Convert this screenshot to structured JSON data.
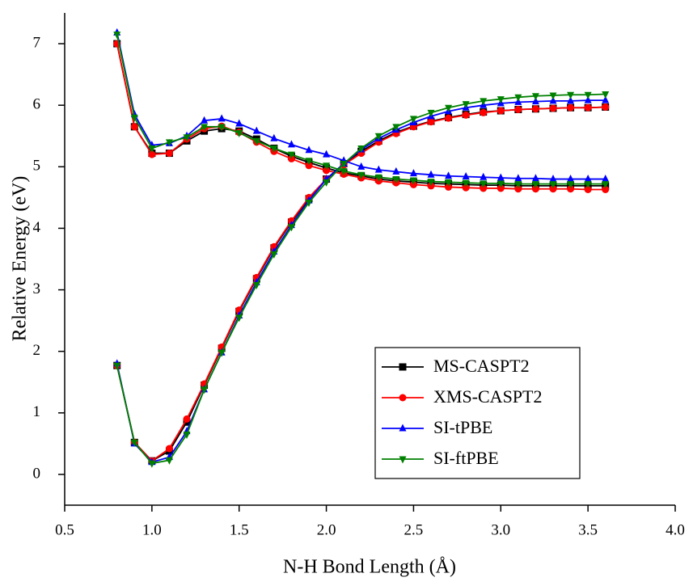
{
  "chart_data": {
    "type": "line",
    "xlabel": "N-H Bond Length (Å)",
    "ylabel": "Relative Energy (eV)",
    "xlim": [
      0.5,
      4.0
    ],
    "ylim": [
      -0.5,
      7.5
    ],
    "xticks": [
      0.5,
      {
        "value": 1,
        "label": "1.0"
      },
      1.5,
      {
        "value": 2,
        "label": "2.0"
      },
      2.5,
      {
        "value": 3,
        "label": "3.0"
      },
      3.5,
      {
        "value": 4,
        "label": "4.0"
      }
    ],
    "yticks": [
      0,
      1,
      2,
      3,
      4,
      5,
      6,
      7
    ],
    "legend": "lower-right",
    "x": [
      0.8,
      0.9,
      1.0,
      1.1,
      1.2,
      1.3,
      1.4,
      1.5,
      1.6,
      1.7,
      1.8,
      1.9,
      2.0,
      2.1,
      2.2,
      2.3,
      2.4,
      2.5,
      2.6,
      2.7,
      2.8,
      2.9,
      3.0,
      3.1,
      3.2,
      3.3,
      3.4,
      3.5,
      3.6
    ],
    "series": [
      {
        "name": "MS-CASPT2",
        "color": "#000000",
        "marker": "square",
        "values": [
          1.77,
          0.52,
          0.22,
          0.38,
          0.85,
          1.45,
          2.05,
          2.65,
          3.18,
          3.68,
          4.1,
          4.48,
          4.8,
          5.05,
          5.25,
          5.42,
          5.56,
          5.66,
          5.74,
          5.8,
          5.85,
          5.89,
          5.91,
          5.93,
          5.94,
          5.95,
          5.96,
          5.96,
          5.97
        ],
        "excited_values": [
          7.0,
          5.65,
          5.22,
          5.22,
          5.42,
          5.58,
          5.62,
          5.58,
          5.45,
          5.3,
          5.17,
          5.07,
          4.98,
          4.9,
          4.85,
          4.8,
          4.77,
          4.75,
          4.73,
          4.72,
          4.71,
          4.7,
          4.7,
          4.69,
          4.69,
          4.69,
          4.69,
          4.69,
          4.69
        ]
      },
      {
        "name": "XMS-CASPT2",
        "color": "#ff0000",
        "marker": "circle",
        "values": [
          1.77,
          0.52,
          0.22,
          0.42,
          0.9,
          1.47,
          2.07,
          2.67,
          3.2,
          3.7,
          4.12,
          4.5,
          4.8,
          5.03,
          5.22,
          5.4,
          5.54,
          5.65,
          5.73,
          5.79,
          5.84,
          5.88,
          5.91,
          5.93,
          5.94,
          5.95,
          5.96,
          5.96,
          5.97
        ],
        "excited_values": [
          7.0,
          5.65,
          5.2,
          5.22,
          5.45,
          5.62,
          5.66,
          5.56,
          5.4,
          5.25,
          5.13,
          5.02,
          4.94,
          4.88,
          4.82,
          4.77,
          4.74,
          4.71,
          4.69,
          4.67,
          4.66,
          4.65,
          4.65,
          4.64,
          4.64,
          4.64,
          4.64,
          4.63,
          4.63
        ]
      },
      {
        "name": "SI-tPBE",
        "color": "#0000ff",
        "marker": "triangle-up",
        "values": [
          1.8,
          0.5,
          0.2,
          0.28,
          0.7,
          1.38,
          1.98,
          2.58,
          3.12,
          3.62,
          4.05,
          4.45,
          4.8,
          5.05,
          5.28,
          5.46,
          5.6,
          5.72,
          5.82,
          5.9,
          5.96,
          6.0,
          6.03,
          6.05,
          6.06,
          6.07,
          6.07,
          6.08,
          6.08
        ],
        "excited_values": [
          7.18,
          5.85,
          5.35,
          5.38,
          5.5,
          5.75,
          5.78,
          5.7,
          5.58,
          5.46,
          5.36,
          5.27,
          5.2,
          5.1,
          5.0,
          4.95,
          4.92,
          4.89,
          4.87,
          4.85,
          4.84,
          4.83,
          4.82,
          4.81,
          4.81,
          4.8,
          4.8,
          4.8,
          4.8
        ]
      },
      {
        "name": "SI-ftPBE",
        "color": "#008000",
        "marker": "triangle-down",
        "values": [
          1.77,
          0.52,
          0.18,
          0.23,
          0.65,
          1.38,
          1.98,
          2.55,
          3.08,
          3.58,
          4.02,
          4.42,
          4.75,
          5.05,
          5.3,
          5.5,
          5.65,
          5.78,
          5.88,
          5.96,
          6.02,
          6.07,
          6.1,
          6.13,
          6.15,
          6.16,
          6.17,
          6.17,
          6.18
        ],
        "excited_values": [
          7.15,
          5.8,
          5.3,
          5.4,
          5.48,
          5.65,
          5.65,
          5.55,
          5.42,
          5.3,
          5.2,
          5.1,
          5.02,
          4.93,
          4.87,
          4.83,
          4.8,
          4.78,
          4.76,
          4.75,
          4.74,
          4.73,
          4.73,
          4.72,
          4.72,
          4.72,
          4.72,
          4.72,
          4.72
        ]
      }
    ]
  }
}
